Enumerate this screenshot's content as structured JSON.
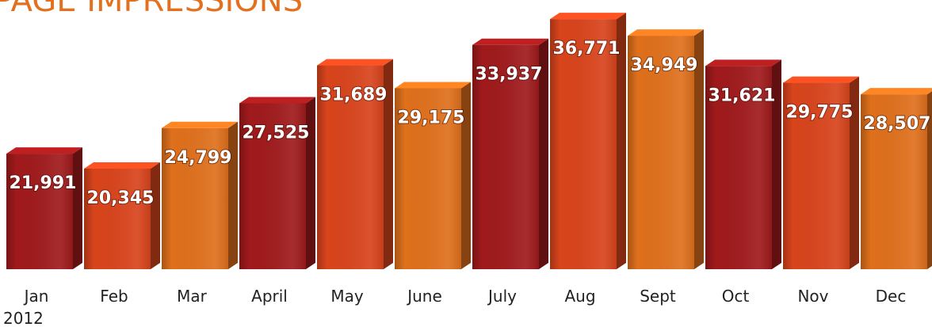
{
  "chart_data": {
    "type": "bar3d",
    "title": "PAGE IMPRESSIONS",
    "categories": [
      "Jan",
      "Feb",
      "Mar",
      "April",
      "May",
      "June",
      "July",
      "Aug",
      "Sept",
      "Oct",
      "Nov",
      "Dec"
    ],
    "year": "2012",
    "values": [
      21991,
      20345,
      24799,
      27525,
      31689,
      29175,
      33937,
      36771,
      34949,
      31621,
      29775,
      28507
    ],
    "value_labels": [
      "21,991",
      "20,345",
      "24,799",
      "27,525",
      "31,689",
      "29,175",
      "33,937",
      "36,771",
      "34,949",
      "31,621",
      "29,775",
      "28,507"
    ],
    "colors": [
      "#a01a1c",
      "#d8441c",
      "#df701c",
      "#a01a1c",
      "#d8441c",
      "#df701c",
      "#a01a1c",
      "#d8441c",
      "#df701c",
      "#a01a1c",
      "#d8441c",
      "#df701c"
    ],
    "ylim": [
      9300,
      38000
    ]
  }
}
